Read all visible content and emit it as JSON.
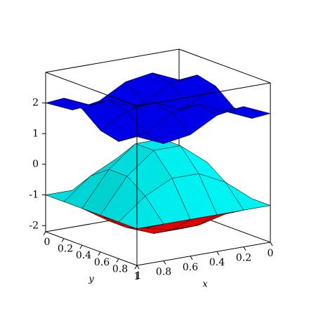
{
  "chart_data": {
    "type": "surface",
    "x_label": "x",
    "y_label": "y",
    "x": [
      0,
      0.2,
      0.4,
      0.6,
      0.8,
      1
    ],
    "y": [
      0,
      0.2,
      0.4,
      0.6,
      0.8,
      1
    ],
    "xlim": [
      0,
      1
    ],
    "ylim": [
      0,
      1
    ],
    "zlim": [
      -2.2,
      3
    ],
    "xticks": [
      0,
      0.2,
      0.4,
      0.6,
      0.8,
      1
    ],
    "yticks": [
      0,
      0.2,
      0.4,
      0.6,
      0.8,
      1
    ],
    "zticks": [
      -2,
      -1,
      0,
      1,
      2
    ],
    "series": [
      {
        "color": "#ff0000",
        "z": [
          [
            -1,
            -1,
            -1,
            -1,
            -1,
            -1
          ],
          [
            -1,
            -1.35,
            -1.56,
            -1.56,
            -1.35,
            -1
          ],
          [
            -1,
            -1.56,
            -1.9,
            -1.9,
            -1.56,
            -1
          ],
          [
            -1,
            -1.56,
            -1.9,
            -1.9,
            -1.56,
            -1
          ],
          [
            -1,
            -1.35,
            -1.56,
            -1.56,
            -1.35,
            -1
          ],
          [
            -1,
            -1,
            -1,
            -1,
            -1,
            -1
          ]
        ]
      },
      {
        "color": "#00ffff",
        "z": [
          [
            -1,
            -1,
            -1,
            -1,
            -1,
            -1
          ],
          [
            -1,
            -0.31,
            0.12,
            0.12,
            -0.31,
            -1
          ],
          [
            -1,
            0.12,
            0.81,
            0.81,
            0.12,
            -1
          ],
          [
            -1,
            0.12,
            0.81,
            0.81,
            0.12,
            -1
          ],
          [
            -1,
            -0.31,
            0.12,
            0.12,
            -0.31,
            -1
          ],
          [
            -1,
            -1,
            -1,
            -1,
            -1,
            -1
          ]
        ]
      },
      {
        "color": "#0000ff",
        "z": [
          [
            2,
            2.38,
            2.24,
            1.76,
            1.62,
            2
          ],
          [
            2.38,
            2.24,
            1.76,
            1.62,
            2,
            2.38
          ],
          [
            2.24,
            1.76,
            1.62,
            2,
            2.38,
            2.24
          ],
          [
            1.76,
            1.62,
            2,
            2.38,
            2.24,
            1.76
          ],
          [
            1.62,
            2,
            2.38,
            2.24,
            1.76,
            1.62
          ],
          [
            2,
            2.38,
            2.24,
            1.76,
            1.62,
            2
          ]
        ]
      }
    ]
  }
}
